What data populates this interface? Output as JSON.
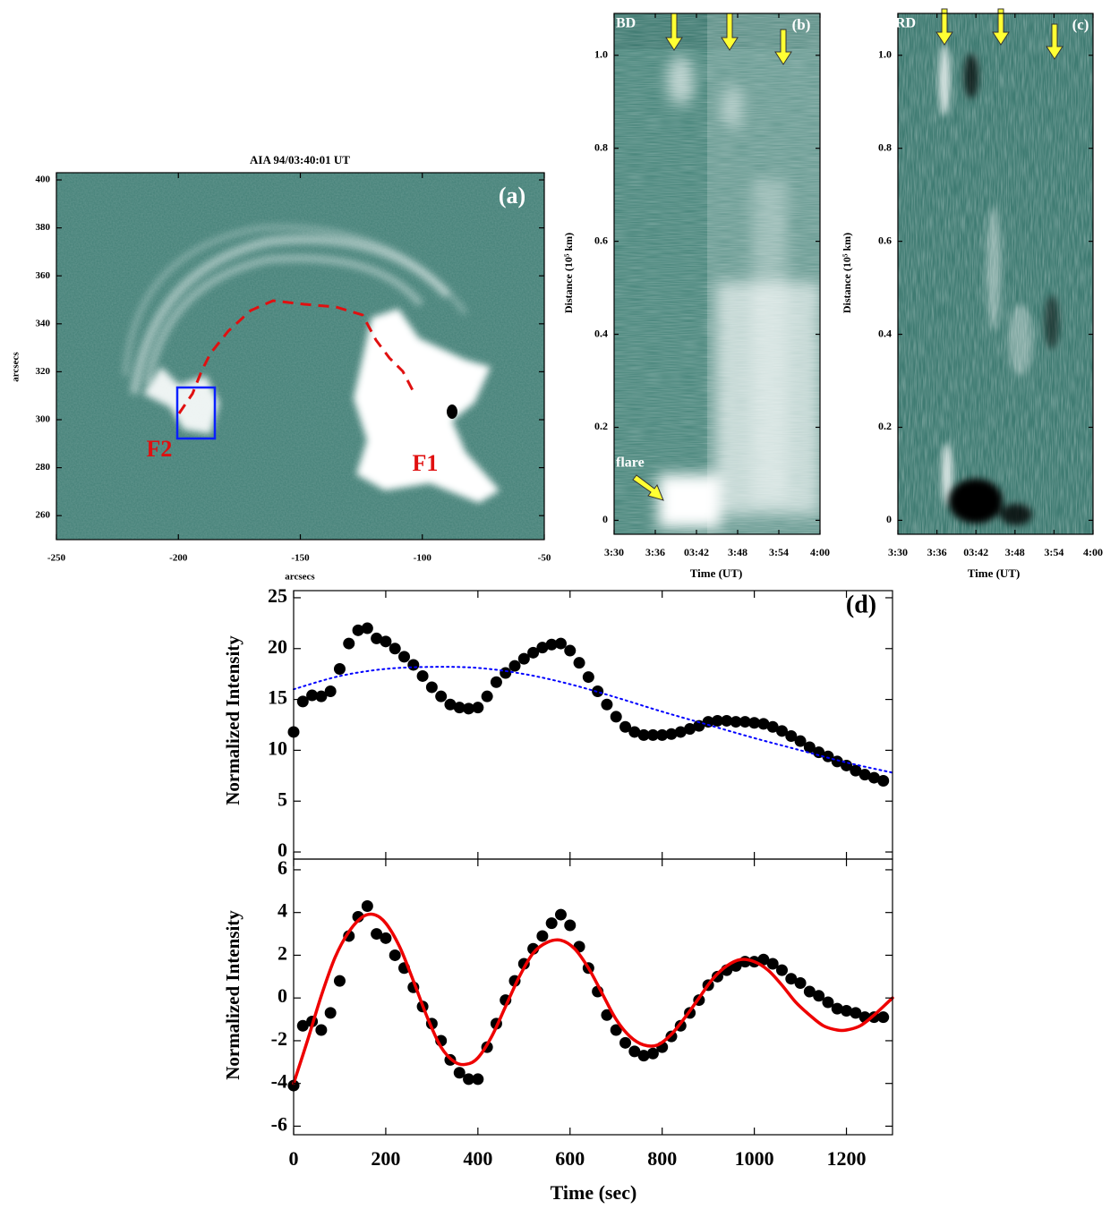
{
  "chart_data": [
    {
      "type": "image",
      "title": "AIA 94/03:40:01 UT",
      "panel_label": "(a)",
      "annotations": [
        "F2",
        "F1"
      ],
      "xlabel": "arcsecs",
      "ylabel": "arcsecs",
      "xlim": [
        -250,
        -50
      ],
      "xticks": [
        -250,
        -200,
        -150,
        -100,
        -50
      ],
      "ylim": [
        250,
        403
      ],
      "yticks": [
        260,
        280,
        300,
        320,
        340,
        360,
        380,
        400
      ]
    },
    {
      "type": "image",
      "panel_label": "(b)",
      "annotations": [
        "BD",
        "flare"
      ],
      "xlabel": "Time (UT)",
      "ylabel": "Distance (10⁵ km)",
      "xlim": [
        210,
        240
      ],
      "xticks": [
        {
          "value": 210,
          "label": "3:30"
        },
        {
          "value": 216,
          "label": "3:36"
        },
        {
          "value": 222,
          "label": "03:42"
        },
        {
          "value": 228,
          "label": "3:48"
        },
        {
          "value": 234,
          "label": "3:54"
        },
        {
          "value": 240,
          "label": "4:00"
        }
      ],
      "ylim": [
        -0.03,
        1.09
      ],
      "yticks": [
        0,
        0.2,
        0.4,
        0.6,
        0.8,
        {
          "value": 1,
          "label": "1.0"
        }
      ]
    },
    {
      "type": "image",
      "panel_label": "(c)",
      "annotations": [
        "RD"
      ],
      "xlabel": "Time (UT)",
      "ylabel": "Distance (10⁵ km)",
      "xlim": [
        210,
        240
      ],
      "xticks": [
        {
          "value": 210,
          "label": "3:30"
        },
        {
          "value": 216,
          "label": "3:36"
        },
        {
          "value": 222,
          "label": "03:42"
        },
        {
          "value": 228,
          "label": "3:48"
        },
        {
          "value": 234,
          "label": "3:54"
        },
        {
          "value": 240,
          "label": "4:00"
        }
      ],
      "ylim": [
        -0.03,
        1.09
      ],
      "yticks": [
        0,
        0.2,
        0.4,
        0.6,
        0.8,
        {
          "value": 1,
          "label": "1.0"
        }
      ]
    },
    {
      "type": "scatter",
      "panel_label": "(d)",
      "ylabel": "Normalized Intensity",
      "xlim": [
        0,
        1300
      ],
      "ylim": [
        -0.7,
        25.7
      ],
      "yticks": [
        0,
        5,
        10,
        15,
        20,
        25
      ],
      "series": [
        {
          "kind": "scatter",
          "color": "#000000",
          "x": [
            0,
            20,
            40,
            60,
            80,
            100,
            120,
            140,
            160,
            180,
            200,
            220,
            240,
            260,
            280,
            300,
            320,
            340,
            360,
            380,
            400,
            420,
            440,
            460,
            480,
            500,
            520,
            540,
            560,
            580,
            600,
            620,
            640,
            660,
            680,
            700,
            720,
            740,
            760,
            780,
            800,
            820,
            840,
            860,
            880,
            900,
            920,
            940,
            960,
            980,
            1000,
            1020,
            1040,
            1060,
            1080,
            1100,
            1120,
            1140,
            1160,
            1180,
            1200,
            1220,
            1240,
            1260,
            1280
          ],
          "values": [
            11.8,
            14.8,
            15.4,
            15.3,
            15.8,
            18.0,
            20.5,
            21.8,
            22.0,
            21.0,
            20.7,
            20.0,
            19.2,
            18.4,
            17.3,
            16.2,
            15.3,
            14.5,
            14.2,
            14.1,
            14.2,
            15.3,
            16.7,
            17.6,
            18.3,
            19.0,
            19.6,
            20.1,
            20.4,
            20.5,
            19.8,
            18.6,
            17.2,
            15.8,
            14.5,
            13.3,
            12.3,
            11.8,
            11.5,
            11.5,
            11.5,
            11.6,
            11.8,
            12.1,
            12.4,
            12.8,
            12.9,
            12.9,
            12.8,
            12.8,
            12.7,
            12.6,
            12.3,
            11.9,
            11.4,
            10.9,
            10.3,
            9.8,
            9.4,
            8.9,
            8.5,
            8.0,
            7.6,
            7.3,
            7.0
          ]
        },
        {
          "kind": "line",
          "style": "dotted",
          "color": "#0000ff",
          "x": [
            0,
            100,
            200,
            300,
            400,
            500,
            600,
            700,
            800,
            900,
            1000,
            1100,
            1200,
            1300
          ],
          "values": [
            16.0,
            17.3,
            18.0,
            18.2,
            18.1,
            17.5,
            16.5,
            15.2,
            13.8,
            12.5,
            11.2,
            10.0,
            8.8,
            7.8
          ]
        }
      ]
    },
    {
      "type": "scatter",
      "ylabel": "Normalized Intensity",
      "xlabel": "Time (sec)",
      "xlim": [
        0,
        1300
      ],
      "xticks": [
        0,
        200,
        400,
        600,
        800,
        1000,
        1200
      ],
      "ylim": [
        -6.4,
        6.5
      ],
      "yticks": [
        -6,
        -4,
        -2,
        0,
        2,
        4,
        6
      ],
      "series": [
        {
          "kind": "scatter",
          "color": "#000000",
          "x": [
            0,
            20,
            40,
            60,
            80,
            100,
            120,
            140,
            160,
            180,
            200,
            220,
            240,
            260,
            280,
            300,
            320,
            340,
            360,
            380,
            400,
            420,
            440,
            460,
            480,
            500,
            520,
            540,
            560,
            580,
            600,
            620,
            640,
            660,
            680,
            700,
            720,
            740,
            760,
            780,
            800,
            820,
            840,
            860,
            880,
            900,
            920,
            940,
            960,
            980,
            1000,
            1020,
            1040,
            1060,
            1080,
            1100,
            1120,
            1140,
            1160,
            1180,
            1200,
            1220,
            1240,
            1260,
            1280
          ],
          "values": [
            -4.1,
            -1.3,
            -1.1,
            -1.5,
            -0.7,
            0.8,
            2.9,
            3.8,
            4.3,
            3.0,
            2.8,
            2.0,
            1.4,
            0.5,
            -0.4,
            -1.2,
            -2.0,
            -2.9,
            -3.5,
            -3.8,
            -3.8,
            -2.3,
            -1.2,
            -0.1,
            0.8,
            1.6,
            2.3,
            2.9,
            3.5,
            3.9,
            3.4,
            2.4,
            1.4,
            0.3,
            -0.8,
            -1.5,
            -2.1,
            -2.5,
            -2.7,
            -2.6,
            -2.3,
            -1.8,
            -1.3,
            -0.7,
            -0.1,
            0.6,
            1.0,
            1.3,
            1.5,
            1.7,
            1.7,
            1.8,
            1.6,
            1.3,
            0.9,
            0.7,
            0.3,
            0.1,
            -0.2,
            -0.5,
            -0.6,
            -0.7,
            -0.9,
            -0.9,
            -0.9
          ]
        },
        {
          "kind": "line",
          "style": "solid",
          "color": "#ee0000",
          "x": [
            0,
            30,
            60,
            90,
            120,
            150,
            175,
            200,
            230,
            260,
            290,
            320,
            350,
            375,
            400,
            430,
            460,
            490,
            520,
            550,
            580,
            610,
            640,
            670,
            700,
            730,
            760,
            790,
            820,
            850,
            880,
            910,
            940,
            970,
            1000,
            1030,
            1060,
            1090,
            1120,
            1150,
            1180,
            1200,
            1230,
            1260,
            1290,
            1300
          ],
          "values": [
            -4.0,
            -2.0,
            0.1,
            1.9,
            3.1,
            3.8,
            3.9,
            3.5,
            2.4,
            0.8,
            -0.9,
            -2.3,
            -3.0,
            -3.1,
            -2.8,
            -1.8,
            -0.4,
            1.0,
            2.1,
            2.6,
            2.7,
            2.3,
            1.4,
            0.2,
            -1.0,
            -1.8,
            -2.2,
            -2.2,
            -1.7,
            -0.9,
            0.0,
            0.9,
            1.5,
            1.8,
            1.7,
            1.3,
            0.6,
            -0.2,
            -0.8,
            -1.3,
            -1.5,
            -1.5,
            -1.3,
            -0.8,
            -0.2,
            0.0
          ]
        }
      ]
    }
  ]
}
